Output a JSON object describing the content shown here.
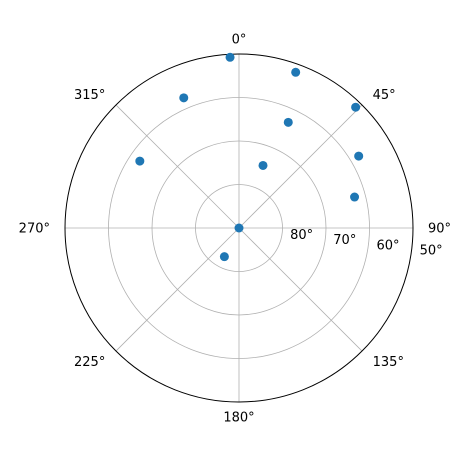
{
  "chart_data": {
    "type": "scatter",
    "projection": "polar",
    "theta_zero_location": "N",
    "theta_direction": "clockwise",
    "theta_tick_labels": [
      "0°",
      "45°",
      "90°",
      "135°",
      "180°",
      "225°",
      "270°",
      "315°"
    ],
    "radial_axis": {
      "center_value": 90,
      "edge_value": 50,
      "ticks": [
        80,
        70,
        60,
        50
      ],
      "tick_labels": [
        "80°",
        "70°",
        "60°",
        "50°"
      ],
      "label_angle_deg": 97
    },
    "grid": true,
    "series": [
      {
        "color": "#1f77b4",
        "points": [
          {
            "theta_deg": 0,
            "r": 90
          },
          {
            "theta_deg": 357,
            "r": 50.7
          },
          {
            "theta_deg": 20,
            "r": 51.9
          },
          {
            "theta_deg": 44,
            "r": 51.4
          },
          {
            "theta_deg": 337,
            "r": 57.5
          },
          {
            "theta_deg": 304,
            "r": 62.5
          },
          {
            "theta_deg": 25,
            "r": 63.2
          },
          {
            "theta_deg": 59,
            "r": 57.9
          },
          {
            "theta_deg": 75,
            "r": 62.5
          },
          {
            "theta_deg": 21,
            "r": 74.6
          },
          {
            "theta_deg": 207,
            "r": 82.6
          }
        ]
      }
    ]
  }
}
